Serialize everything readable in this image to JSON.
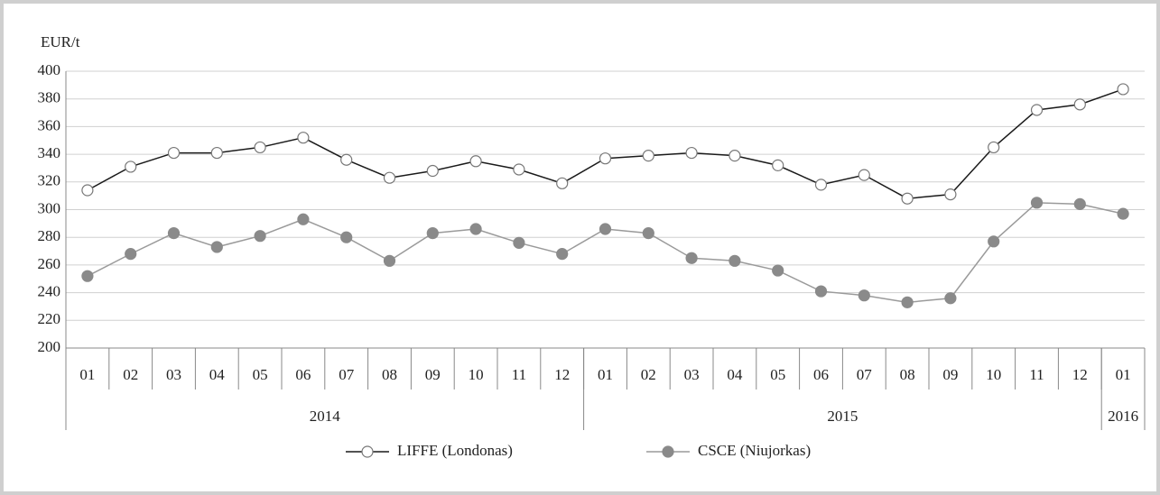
{
  "chart_data": {
    "type": "line",
    "y_label": "EUR/t",
    "categories": [
      "01",
      "02",
      "03",
      "04",
      "05",
      "06",
      "07",
      "08",
      "09",
      "10",
      "11",
      "12",
      "01",
      "02",
      "03",
      "04",
      "05",
      "06",
      "07",
      "08",
      "09",
      "10",
      "11",
      "12",
      "01"
    ],
    "groups": [
      {
        "label": "2014",
        "count": 12
      },
      {
        "label": "2015",
        "count": 12
      },
      {
        "label": "2016",
        "count": 1
      }
    ],
    "series": [
      {
        "name": "LIFFE (Londonas)",
        "color": "#1a1a1a",
        "marker_fill": "#ffffff",
        "marker_stroke": "#777777",
        "values": [
          314,
          331,
          341,
          341,
          345,
          352,
          336,
          323,
          328,
          335,
          329,
          319,
          337,
          339,
          341,
          339,
          332,
          318,
          325,
          308,
          311,
          345,
          372,
          376,
          387
        ]
      },
      {
        "name": "CSCE (Niujorkas)",
        "color": "#9a9a9a",
        "marker_fill": "#8a8a8a",
        "marker_stroke": "#8a8a8a",
        "values": [
          252,
          268,
          283,
          273,
          281,
          293,
          280,
          263,
          283,
          286,
          276,
          268,
          286,
          283,
          265,
          263,
          256,
          241,
          238,
          233,
          236,
          277,
          305,
          304,
          297
        ]
      }
    ],
    "ylim": [
      200,
      400
    ],
    "yticks": [
      200,
      220,
      240,
      260,
      280,
      300,
      320,
      340,
      360,
      380,
      400
    ],
    "grid": true,
    "legend": "bottom"
  }
}
